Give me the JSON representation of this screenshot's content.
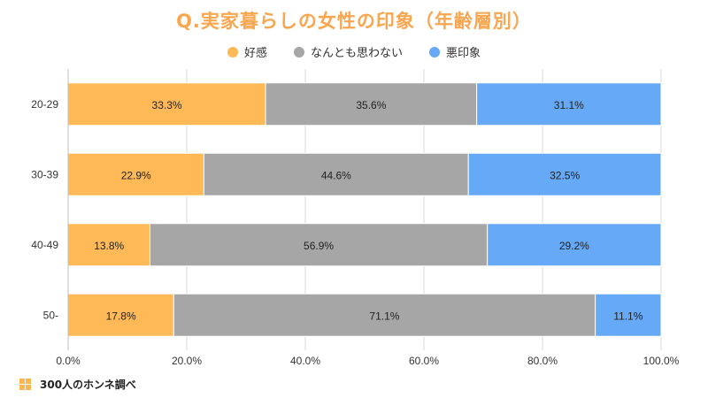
{
  "chart_data": {
    "type": "bar",
    "orientation": "horizontal",
    "stacked": true,
    "title": "Q.実家暮らしの女性の印象（年齢層別）",
    "categories": [
      "20-29",
      "30-39",
      "40-49",
      "50-"
    ],
    "series": [
      {
        "name": "好感",
        "color": "#FFBA57",
        "values": [
          33.3,
          22.9,
          13.8,
          17.8
        ],
        "labels": [
          "33.3%",
          "22.9%",
          "13.8%",
          "17.8%"
        ]
      },
      {
        "name": "なんとも思わない",
        "color": "#A6A6A6",
        "values": [
          35.6,
          44.6,
          56.9,
          71.1
        ],
        "labels": [
          "35.6%",
          "44.6%",
          "56.9%",
          "71.1%"
        ]
      },
      {
        "name": "悪印象",
        "color": "#65A9F7",
        "values": [
          31.1,
          32.5,
          29.2,
          11.1
        ],
        "labels": [
          "31.1%",
          "32.5%",
          "29.2%",
          "11.1%"
        ]
      }
    ],
    "xlim": [
      0,
      100
    ],
    "xticks": [
      "0.0%",
      "20.0%",
      "40.0%",
      "60.0%",
      "80.0%",
      "100.0%"
    ],
    "grid": true,
    "legend_position": "top"
  },
  "footer": {
    "source_label": "300人のホンネ調べ"
  },
  "colors": {
    "title": "#F8A64F",
    "grid": "#D9D9D9",
    "text": "#333333"
  }
}
